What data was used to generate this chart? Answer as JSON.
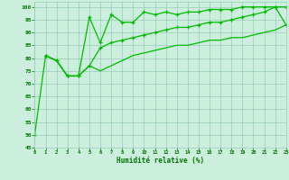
{
  "xlabel": "Humidité relative (%)",
  "xlim": [
    0,
    23
  ],
  "ylim": [
    45,
    102
  ],
  "yticks": [
    45,
    50,
    55,
    60,
    65,
    70,
    75,
    80,
    85,
    90,
    95,
    100
  ],
  "xticks": [
    0,
    1,
    2,
    3,
    4,
    5,
    6,
    7,
    8,
    9,
    10,
    11,
    12,
    13,
    14,
    15,
    16,
    17,
    18,
    19,
    20,
    21,
    22,
    23
  ],
  "background_color": "#cceedd",
  "grid_color": "#99ccbb",
  "line_color": "#00bb00",
  "line1_x": [
    0,
    1,
    2,
    3,
    4,
    5,
    6,
    7,
    8,
    9,
    10,
    11,
    12,
    13,
    14,
    15,
    16,
    17,
    18,
    19,
    20,
    21,
    22,
    23
  ],
  "line1_y": [
    50,
    81,
    79,
    73,
    73,
    96,
    86,
    97,
    94,
    94,
    98,
    97,
    98,
    97,
    98,
    98,
    99,
    99,
    99,
    100,
    100,
    100,
    100,
    100
  ],
  "line2_x": [
    1,
    2,
    3,
    4,
    5,
    6,
    7,
    8,
    9,
    10,
    11,
    12,
    13,
    14,
    15,
    16,
    17,
    18,
    19,
    20,
    21,
    22,
    23
  ],
  "line2_y": [
    81,
    79,
    73,
    73,
    77,
    84,
    86,
    87,
    88,
    89,
    90,
    91,
    92,
    92,
    93,
    94,
    94,
    95,
    96,
    97,
    98,
    100,
    93
  ],
  "line3_x": [
    1,
    2,
    3,
    4,
    5,
    6,
    7,
    8,
    9,
    10,
    11,
    12,
    13,
    14,
    15,
    16,
    17,
    18,
    19,
    20,
    21,
    22,
    23
  ],
  "line3_y": [
    81,
    79,
    73,
    73,
    77,
    75,
    77,
    79,
    81,
    82,
    83,
    84,
    85,
    85,
    86,
    87,
    87,
    88,
    88,
    89,
    90,
    91,
    93
  ]
}
